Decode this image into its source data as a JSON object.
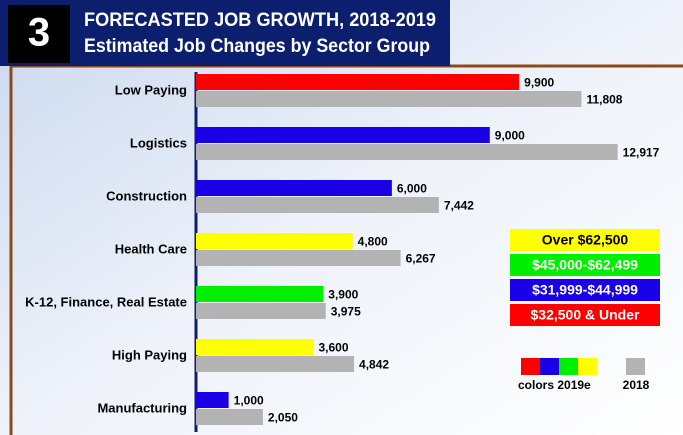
{
  "badge": "3",
  "chart_data": {
    "type": "barh",
    "title": "FORECASTED JOB GROWTH, 2018-2019",
    "subtitle": "Estimated Job Changes by Sector Group",
    "categories": [
      "Low Paying",
      "Logistics",
      "Construction",
      "Health Care",
      "K-12, Finance, Real Estate",
      "High Paying",
      "Manufacturing"
    ],
    "series": [
      {
        "name": "colors 2019e",
        "colors": [
          "#ff0000",
          "#1a00e6",
          "#1a00e6",
          "#ffff00",
          "#00ee00",
          "#ffff00",
          "#1a00e6"
        ],
        "values": [
          9900,
          9000,
          6000,
          4800,
          3900,
          3600,
          1000
        ],
        "value_labels": [
          "9,900",
          "9,000",
          "6,000",
          "4,800",
          "3,900",
          "3,600",
          "1,000"
        ]
      },
      {
        "name": "2018",
        "color": "#b3b3b3",
        "values": [
          11808,
          12917,
          7442,
          6267,
          3975,
          4842,
          2050
        ],
        "value_labels": [
          "11,808",
          "12,917",
          "7,442",
          "6,267",
          "3,975",
          "4,842",
          "2,050"
        ]
      }
    ],
    "xlim": [
      0,
      14000
    ],
    "wage_bands": [
      {
        "label": "Over $62,500",
        "color": "#ffff00"
      },
      {
        "label": "$45,000-$62,499",
        "color": "#00ee00"
      },
      {
        "label": "$31,999-$44,999",
        "color": "#1a00e6"
      },
      {
        "label": "$32,500 & Under",
        "color": "#ff0000"
      }
    ]
  }
}
